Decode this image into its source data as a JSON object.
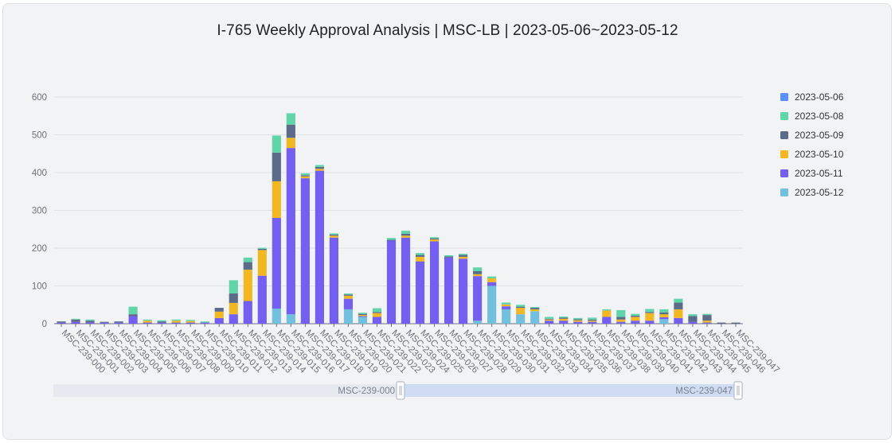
{
  "chart_data": {
    "type": "bar",
    "stacked": true,
    "title": "I-765 Weekly Approval Analysis | MSC-LB | 2023-05-06~2023-05-12",
    "ylim": [
      0,
      600
    ],
    "yticks": [
      0,
      100,
      200,
      300,
      400,
      500,
      600
    ],
    "grid": true,
    "legend_position": "right",
    "categories": [
      "MSC-239-000",
      "MSC-239-001",
      "MSC-239-002",
      "MSC-239-003",
      "MSC-239-004",
      "MSC-239-005",
      "MSC-239-006",
      "MSC-239-007",
      "MSC-239-008",
      "MSC-239-009",
      "MSC-239-010",
      "MSC-239-011",
      "MSC-239-012",
      "MSC-239-013",
      "MSC-239-014",
      "MSC-239-015",
      "MSC-239-016",
      "MSC-239-017",
      "MSC-239-018",
      "MSC-239-019",
      "MSC-239-020",
      "MSC-239-021",
      "MSC-239-022",
      "MSC-239-023",
      "MSC-239-024",
      "MSC-239-025",
      "MSC-239-026",
      "MSC-239-027",
      "MSC-239-028",
      "MSC-239-029",
      "MSC-239-030",
      "MSC-239-031",
      "MSC-239-032",
      "MSC-239-033",
      "MSC-239-034",
      "MSC-239-035",
      "MSC-239-036",
      "MSC-239-037",
      "MSC-239-038",
      "MSC-239-039",
      "MSC-239-040",
      "MSC-239-041",
      "MSC-239-042",
      "MSC-239-043",
      "MSC-239-044",
      "MSC-239-045",
      "MSC-239-046",
      "MSC-239-047"
    ],
    "series": [
      {
        "name": "2023-05-12",
        "color": "#73c0de",
        "values": [
          0,
          0,
          0,
          0,
          0,
          0,
          0,
          0,
          0,
          0,
          0,
          0,
          0,
          0,
          0,
          40,
          25,
          0,
          0,
          0,
          38,
          18,
          0,
          0,
          0,
          0,
          0,
          0,
          0,
          8,
          100,
          38,
          25,
          33,
          0,
          0,
          0,
          0,
          0,
          0,
          0,
          0,
          12,
          0,
          0,
          0,
          0,
          0
        ]
      },
      {
        "name": "2023-05-11",
        "color": "#7360f0",
        "values": [
          3,
          5,
          3,
          3,
          3,
          20,
          3,
          3,
          3,
          3,
          3,
          15,
          25,
          60,
          127,
          240,
          440,
          385,
          405,
          228,
          28,
          2,
          18,
          220,
          228,
          165,
          218,
          175,
          172,
          118,
          10,
          8,
          0,
          0,
          8,
          8,
          5,
          5,
          18,
          5,
          8,
          8,
          5,
          15,
          5,
          3,
          0,
          0
        ]
      },
      {
        "name": "2023-05-10",
        "color": "#f2b824",
        "values": [
          0,
          0,
          0,
          0,
          0,
          0,
          5,
          0,
          5,
          4,
          0,
          17,
          30,
          83,
          68,
          97,
          27,
          5,
          5,
          5,
          8,
          3,
          10,
          0,
          5,
          12,
          5,
          0,
          5,
          5,
          10,
          5,
          17,
          5,
          3,
          5,
          4,
          3,
          17,
          6,
          10,
          20,
          8,
          23,
          0,
          5,
          0,
          0
        ]
      },
      {
        "name": "2023-05-09",
        "color": "#5c6b8a",
        "values": [
          3,
          6,
          5,
          2,
          3,
          5,
          0,
          3,
          0,
          0,
          0,
          10,
          25,
          20,
          3,
          76,
          35,
          3,
          5,
          3,
          3,
          3,
          3,
          2,
          5,
          5,
          3,
          3,
          5,
          8,
          0,
          0,
          3,
          4,
          2,
          3,
          3,
          3,
          0,
          7,
          3,
          3,
          5,
          18,
          15,
          15,
          3,
          3
        ]
      },
      {
        "name": "2023-05-08",
        "color": "#5fd5a9",
        "values": [
          0,
          2,
          3,
          0,
          0,
          20,
          3,
          3,
          3,
          3,
          3,
          0,
          35,
          12,
          3,
          45,
          30,
          5,
          5,
          3,
          3,
          3,
          10,
          5,
          8,
          5,
          3,
          3,
          3,
          10,
          5,
          5,
          5,
          2,
          5,
          3,
          3,
          5,
          3,
          18,
          5,
          8,
          8,
          10,
          5,
          3,
          0,
          0
        ]
      },
      {
        "name": "2023-05-06",
        "color": "#5b8ff9",
        "values": [
          0,
          0,
          0,
          0,
          0,
          0,
          0,
          0,
          0,
          0,
          0,
          0,
          0,
          0,
          0,
          0,
          0,
          0,
          0,
          0,
          0,
          0,
          0,
          0,
          0,
          0,
          0,
          0,
          0,
          0,
          0,
          0,
          0,
          0,
          0,
          0,
          0,
          0,
          0,
          0,
          0,
          0,
          0,
          0,
          0,
          0,
          0,
          0
        ]
      }
    ],
    "legend": [
      "2023-05-06",
      "2023-05-08",
      "2023-05-09",
      "2023-05-10",
      "2023-05-11",
      "2023-05-12"
    ]
  },
  "zoom": {
    "start_label": "MSC-239-000",
    "end_label": "MSC-239-047"
  }
}
